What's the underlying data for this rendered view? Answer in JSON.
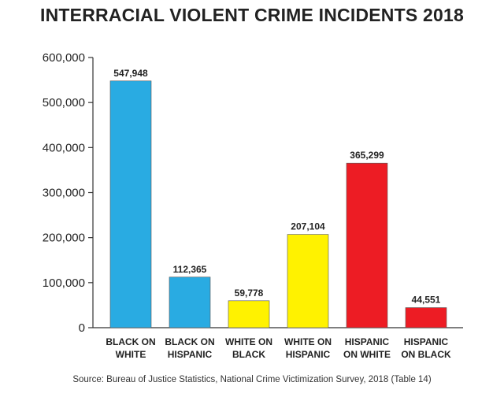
{
  "chart_data": {
    "type": "bar",
    "title": "INTERRACIAL VIOLENT CRIME INCIDENTS 2018",
    "categories": [
      [
        "BLACK ON",
        "WHITE"
      ],
      [
        "BLACK ON",
        "HISPANIC"
      ],
      [
        "WHITE ON",
        "BLACK"
      ],
      [
        "WHITE ON",
        "HISPANIC"
      ],
      [
        "HISPANIC",
        "ON WHITE"
      ],
      [
        "HISPANIC",
        "ON BLACK"
      ]
    ],
    "values": [
      547948,
      112365,
      59778,
      207104,
      365299,
      44551
    ],
    "data_labels": [
      "547,948",
      "112,365",
      "59,778",
      "207,104",
      "365,299",
      "44,551"
    ],
    "bar_colors": [
      "#29abe2",
      "#29abe2",
      "#fff200",
      "#fff200",
      "#ed1c24",
      "#ed1c24"
    ],
    "ylim": [
      0,
      600000
    ],
    "yticks": [
      0,
      100000,
      200000,
      300000,
      400000,
      500000,
      600000
    ],
    "ytick_labels": [
      "0",
      "100,000",
      "200,000",
      "300,000",
      "400,000",
      "500,000",
      "600,000"
    ],
    "xlabel": "",
    "ylabel": "",
    "grid": false,
    "legend": false,
    "source": "Source: Bureau of Justice Statistics, National Crime Victimization Survey, 2018 (Table 14)"
  }
}
